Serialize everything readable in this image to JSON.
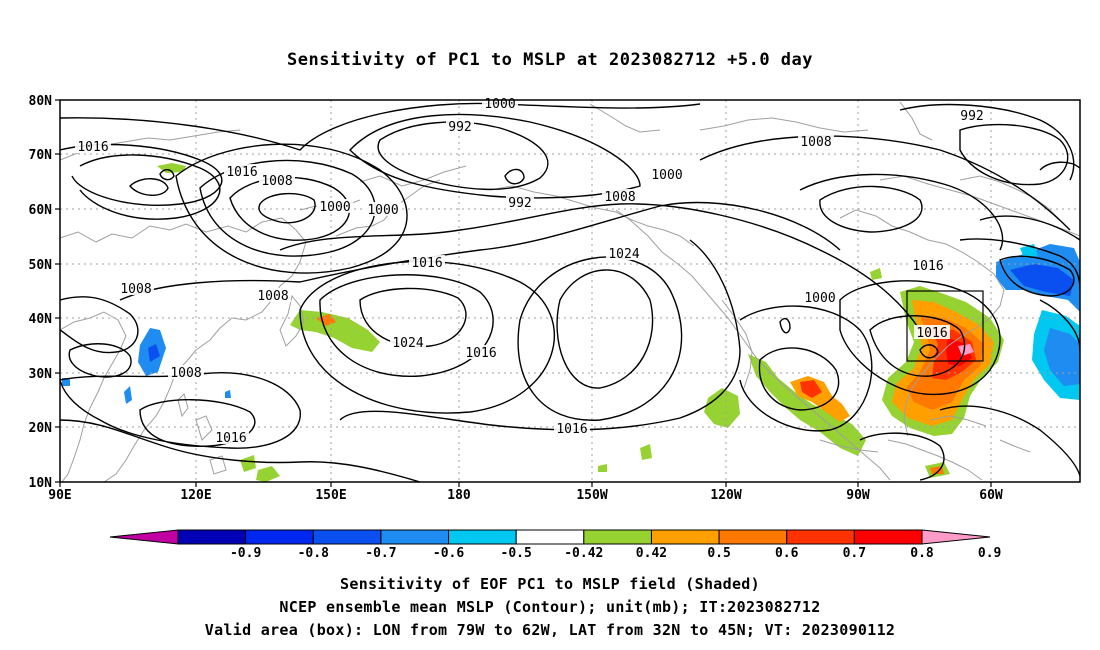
{
  "title": "Sensitivity of PC1 to MSLP at 2023082712 +5.0 day",
  "map": {
    "lat_labels": [
      "80N",
      "70N",
      "60N",
      "50N",
      "40N",
      "30N",
      "20N",
      "10N"
    ],
    "lon_labels": [
      "90E",
      "120E",
      "150E",
      "180",
      "150W",
      "120W",
      "90W",
      "60W"
    ],
    "box": {
      "lon_from": "79W",
      "lon_to": "62W",
      "lat_from": "32N",
      "lat_to": "45N"
    },
    "contour_labels": [
      {
        "text": "1000"
      },
      {
        "text": "992"
      },
      {
        "text": "1016"
      },
      {
        "text": "1016"
      },
      {
        "text": "1008"
      },
      {
        "text": "1000"
      },
      {
        "text": "1000"
      },
      {
        "text": "992"
      },
      {
        "text": "1008"
      },
      {
        "text": "1000"
      },
      {
        "text": "1008"
      },
      {
        "text": "992"
      },
      {
        "text": "1016"
      },
      {
        "text": "1024"
      },
      {
        "text": "1016"
      },
      {
        "text": "1008"
      },
      {
        "text": "1008"
      },
      {
        "text": "1024"
      },
      {
        "text": "1016"
      },
      {
        "text": "1008"
      },
      {
        "text": "1016"
      },
      {
        "text": "1000"
      },
      {
        "text": "1016"
      },
      {
        "text": "1016"
      }
    ]
  },
  "colorbar": {
    "labels": [
      "-0.9",
      "-0.8",
      "-0.7",
      "-0.6",
      "-0.5",
      "-0.42",
      "0.42",
      "0.5",
      "0.6",
      "0.7",
      "0.8",
      "0.9"
    ],
    "colors": [
      "#c000a0",
      "#0000b4",
      "#0028f0",
      "#0a50f0",
      "#1e8cf0",
      "#00c8f0",
      "#ffffff",
      "#96d232",
      "#ffa000",
      "#ff7800",
      "#ff3200",
      "#ff0000",
      "#ff9bc8"
    ]
  },
  "captions": {
    "line1": "Sensitivity of EOF PC1 to MSLP field (Shaded)",
    "line2": "NCEP ensemble mean MSLP (Contour); unit(mb); IT:2023082712",
    "line3": "Valid area (box): LON from 79W to 62W, LAT from 32N to 45N; VT: 2023090112"
  }
}
